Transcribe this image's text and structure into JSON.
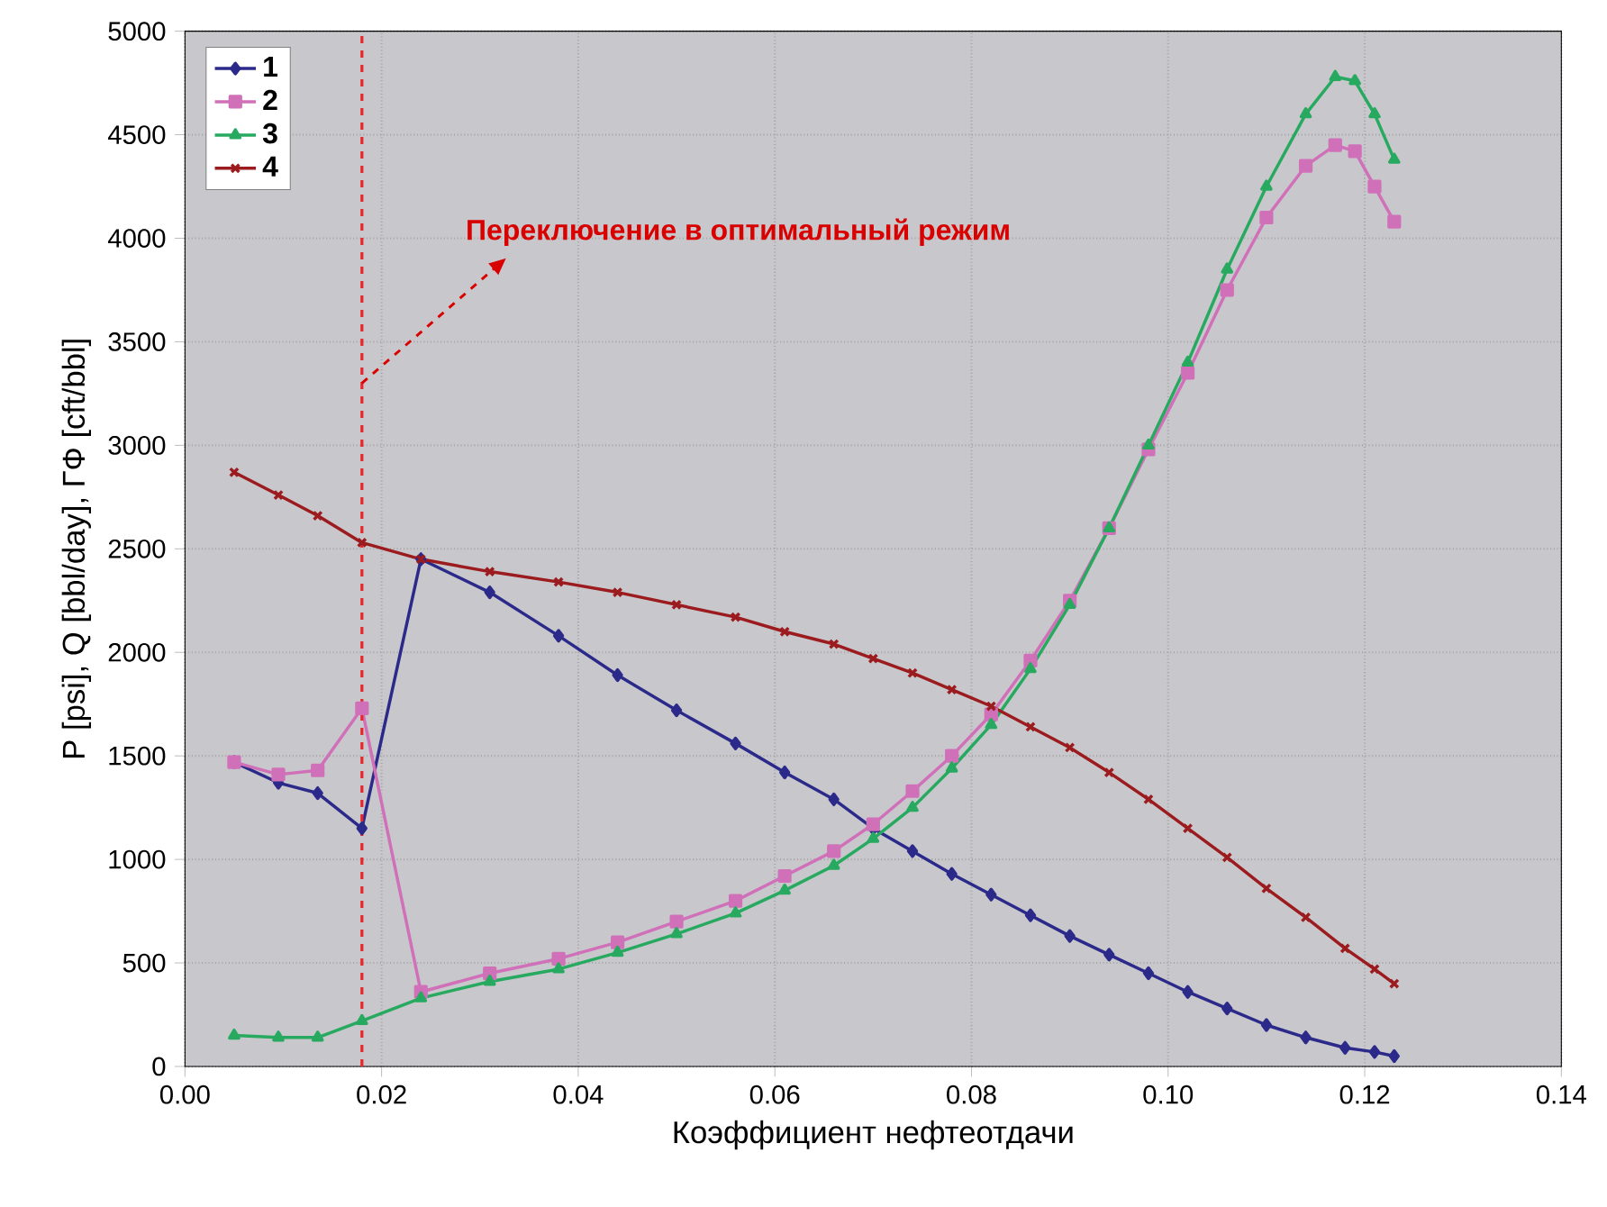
{
  "chart_data": {
    "type": "line",
    "xlabel": "Коэффициент нефтеотдачи",
    "ylabel": "P [psi], Q [bbl/day], ГФ [cft/bbl]",
    "xlim": [
      0,
      0.14
    ],
    "ylim": [
      0,
      5000
    ],
    "xticks": [
      {
        "value": 0,
        "label": "0.00"
      },
      {
        "value": 0.02,
        "label": "0.02"
      },
      {
        "value": 0.04,
        "label": "0.04"
      },
      {
        "value": 0.06,
        "label": "0.06"
      },
      {
        "value": 0.08,
        "label": "0.08"
      },
      {
        "value": 0.1,
        "label": "0.10"
      },
      {
        "value": 0.12,
        "label": "0.12"
      },
      {
        "value": 0.14,
        "label": "0.14"
      }
    ],
    "yticks": [
      0,
      500,
      1000,
      1500,
      2000,
      2500,
      3000,
      3500,
      4000,
      4500,
      5000
    ],
    "grid": true,
    "legend": "top left",
    "series": [
      {
        "name": "1",
        "color": "#2b2a8a",
        "marker": "diamond",
        "x": [
          0.005,
          0.0095,
          0.0135,
          0.018,
          0.024,
          0.031,
          0.038,
          0.044,
          0.05,
          0.056,
          0.061,
          0.066,
          0.07,
          0.074,
          0.078,
          0.082,
          0.086,
          0.09,
          0.094,
          0.098,
          0.102,
          0.106,
          0.11,
          0.114,
          0.118,
          0.121,
          0.123
        ],
        "values": [
          1470,
          1370,
          1320,
          1150,
          2450,
          2290,
          2080,
          1890,
          1720,
          1560,
          1420,
          1290,
          1150,
          1040,
          930,
          830,
          730,
          630,
          540,
          450,
          360,
          280,
          200,
          140,
          90,
          70,
          50
        ]
      },
      {
        "name": "2",
        "color": "#d070b8",
        "marker": "square",
        "x": [
          0.005,
          0.0095,
          0.0135,
          0.018,
          0.024,
          0.031,
          0.038,
          0.044,
          0.05,
          0.056,
          0.061,
          0.066,
          0.07,
          0.074,
          0.078,
          0.082,
          0.086,
          0.09,
          0.094,
          0.098,
          0.102,
          0.106,
          0.11,
          0.114,
          0.117,
          0.119,
          0.121,
          0.123
        ],
        "values": [
          1470,
          1410,
          1430,
          1730,
          360,
          450,
          520,
          600,
          700,
          800,
          920,
          1040,
          1170,
          1330,
          1500,
          1700,
          1960,
          2250,
          2600,
          2980,
          3350,
          3750,
          4100,
          4350,
          4450,
          4420,
          4250,
          4080
        ]
      },
      {
        "name": "3",
        "color": "#27a960",
        "marker": "triangle",
        "x": [
          0.005,
          0.0095,
          0.0135,
          0.018,
          0.024,
          0.031,
          0.038,
          0.044,
          0.05,
          0.056,
          0.061,
          0.066,
          0.07,
          0.074,
          0.078,
          0.082,
          0.086,
          0.09,
          0.094,
          0.098,
          0.102,
          0.106,
          0.11,
          0.114,
          0.117,
          0.119,
          0.121,
          0.123
        ],
        "values": [
          150,
          140,
          140,
          220,
          330,
          410,
          470,
          550,
          640,
          740,
          850,
          970,
          1100,
          1250,
          1440,
          1650,
          1920,
          2230,
          2600,
          3000,
          3400,
          3850,
          4250,
          4600,
          4780,
          4760,
          4600,
          4380
        ]
      },
      {
        "name": "4",
        "color": "#9b1b1e",
        "marker": "cross",
        "x": [
          0.005,
          0.0095,
          0.0135,
          0.018,
          0.024,
          0.031,
          0.038,
          0.044,
          0.05,
          0.056,
          0.061,
          0.066,
          0.07,
          0.074,
          0.078,
          0.082,
          0.086,
          0.09,
          0.094,
          0.098,
          0.102,
          0.106,
          0.11,
          0.114,
          0.118,
          0.121,
          0.123
        ],
        "values": [
          2870,
          2760,
          2660,
          2530,
          2450,
          2390,
          2340,
          2290,
          2230,
          2170,
          2100,
          2040,
          1970,
          1900,
          1820,
          1740,
          1640,
          1540,
          1420,
          1290,
          1150,
          1010,
          860,
          720,
          570,
          470,
          400
        ]
      }
    ],
    "ref_lines": [
      {
        "axis": "x",
        "value": 0.018,
        "color": "#e8262b",
        "line_style": "dashed"
      }
    ],
    "annotations": [
      {
        "text": "Переключение в оптимальный режим",
        "x": 0.018,
        "y": 3300
      }
    ]
  }
}
